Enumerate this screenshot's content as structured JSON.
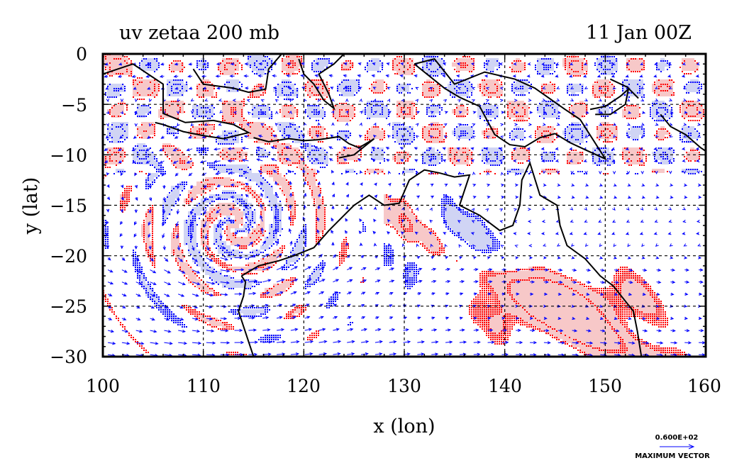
{
  "chart_data": {
    "type": "contour",
    "title_left": "uv zetaa 200 mb",
    "title_right": "11 Jan 00Z",
    "xlabel": "x (lon)",
    "ylabel": "y (lat)",
    "xlim": [
      100,
      160
    ],
    "ylim": [
      -30,
      0
    ],
    "x_ticks": [
      "100",
      "110",
      "120",
      "130",
      "140",
      "150",
      "160"
    ],
    "y_ticks": [
      "0",
      "−5",
      "−10",
      "−15",
      "−20",
      "−25",
      "−30"
    ],
    "grid": true,
    "colors": {
      "positive_contour": "#ff0000",
      "positive_fill": "#f7c8c8",
      "negative_contour": "#0000ff",
      "negative_fill": "#d0d4f4",
      "vectors": "#0000ff",
      "coastline": "#000000",
      "grid": "#000000"
    },
    "vector_key": {
      "value": "0.600E+02",
      "label": "MAXIMUM VECTOR"
    }
  }
}
